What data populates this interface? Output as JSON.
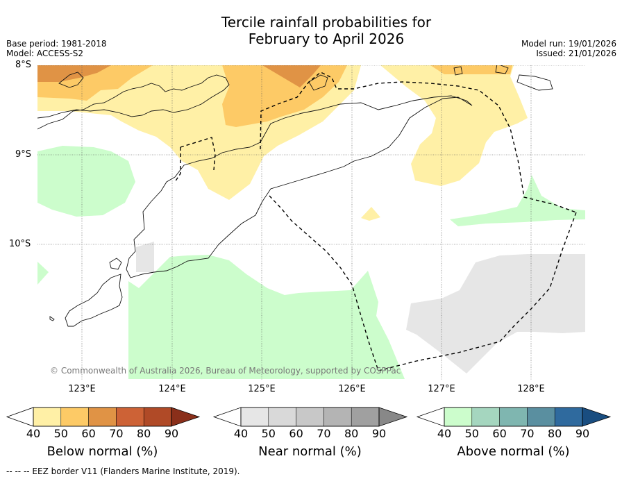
{
  "title_line1": "Tercile rainfall probabilities for",
  "title_line2": "February to April 2026",
  "base_period": "Base period: 1981-2018",
  "model": "Model: ACCESS-S2",
  "model_run": "Model run: 19/01/2026",
  "issued": "Issued: 21/01/2026",
  "lat_labels": [
    "8°S",
    "9°S",
    "10°S"
  ],
  "lon_labels": [
    "123°E",
    "124°E",
    "125°E",
    "126°E",
    "127°E",
    "128°E"
  ],
  "copyright": "© Commonwealth of Australia 2026, Bureau of Meteorology, supported by COSPPac",
  "colorbars": [
    {
      "title": "Below normal (%)",
      "ticks": [
        "40",
        "50",
        "60",
        "70",
        "80",
        "90"
      ],
      "colors": [
        "#fff0a6",
        "#fdca66",
        "#e09345",
        "#cd6236",
        "#b04a27",
        "#8a2f1a"
      ]
    },
    {
      "title": "Near normal (%)",
      "ticks": [
        "40",
        "50",
        "60",
        "70",
        "80",
        "90"
      ],
      "colors": [
        "#e6e6e6",
        "#d9d9d9",
        "#c8c8c8",
        "#b4b4b4",
        "#a0a0a0",
        "#888888"
      ]
    },
    {
      "title": "Above normal (%)",
      "ticks": [
        "40",
        "50",
        "60",
        "70",
        "80",
        "90"
      ],
      "colors": [
        "#ccfdcc",
        "#a5d6bf",
        "#7fb6b0",
        "#5a8fa0",
        "#2f6a9e",
        "#194d80"
      ]
    }
  ],
  "footnote": "--  --  -- EEZ border V11 (Flanders Marine Institute, 2019).",
  "colors": {
    "below_50": "#fff0a6",
    "below_60": "#fdca66",
    "below_70": "#e09345",
    "near_40": "#e6e6e6",
    "above_40": "#ccfdcc"
  }
}
